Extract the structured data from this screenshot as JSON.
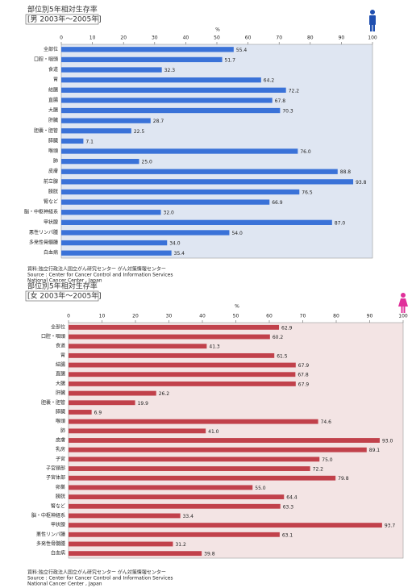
{
  "chart_data": [
    {
      "type": "bar",
      "orientation": "horizontal",
      "title": "部位別5年相対生存率",
      "subtitle": "[男 2003年～2005年]",
      "xlabel": "%",
      "categories": [
        "全部位",
        "口腔・咽頭",
        "食道",
        "胃",
        "結腸",
        "直腸",
        "大腸",
        "肝臓",
        "胆嚢・胆管",
        "膵臓",
        "喉頭",
        "肺",
        "皮膚",
        "前立腺",
        "膀胱",
        "腎など",
        "脳・中枢神経系",
        "甲状腺",
        "悪性リンパ腫",
        "多発性骨髄腫",
        "白血病"
      ],
      "values": [
        55.4,
        51.7,
        32.3,
        64.2,
        72.2,
        67.8,
        70.3,
        28.7,
        22.5,
        7.1,
        76.0,
        25.0,
        88.8,
        93.8,
        76.5,
        66.9,
        32.0,
        87.0,
        54.0,
        34.0,
        35.4
      ],
      "value_labels": [
        "55.4",
        "51.7",
        "32.3",
        "64.2",
        "72.2",
        "67.8",
        "70.3",
        "28.7",
        "22.5",
        "7.1",
        "76.0",
        "25.0",
        "88.8",
        "93.8",
        "76.5",
        "66.9",
        "32.0",
        "87.0",
        "54.0",
        "34.0",
        "35.4"
      ],
      "color": "#3a72d8",
      "background": "#dfe6f2",
      "xlim": [
        0,
        100
      ],
      "xticks": [
        0,
        10,
        20,
        30,
        40,
        50,
        60,
        70,
        80,
        90,
        100
      ],
      "source": [
        "資料:独立行政法人国立がん研究センター がん対策情報センター",
        "Source : Center for Cancer Control and Information Services",
        "National Cancer Center , Japan"
      ]
    },
    {
      "type": "bar",
      "orientation": "horizontal",
      "title": "部位別5年相対生存率",
      "subtitle": "[女 2003年～2005年]",
      "xlabel": "%",
      "categories": [
        "全部位",
        "口腔・咽頭",
        "食道",
        "胃",
        "結腸",
        "直腸",
        "大腸",
        "肝臓",
        "胆嚢・胆管",
        "膵臓",
        "喉頭",
        "肺",
        "皮膚",
        "乳房",
        "子宮",
        "子宮頸部",
        "子宮体部",
        "卵巣",
        "膀胱",
        "腎など",
        "脳・中枢神経系",
        "甲状腺",
        "悪性リンパ腫",
        "多発性骨髄腫",
        "白血病"
      ],
      "values": [
        62.9,
        60.2,
        41.3,
        61.5,
        67.9,
        67.8,
        67.9,
        26.2,
        19.9,
        6.9,
        74.6,
        41.0,
        93.0,
        89.1,
        75.0,
        72.2,
        79.8,
        55.0,
        64.4,
        63.3,
        33.4,
        93.7,
        63.1,
        31.2,
        39.8
      ],
      "value_labels": [
        "62.9",
        "60.2",
        "41.3",
        "61.5",
        "67.9",
        "67.8",
        "67.9",
        "26.2",
        "19.9",
        "6.9",
        "74.6",
        "41.0",
        "93.0",
        "89.1",
        "75.0",
        "72.2",
        "79.8",
        "55.0",
        "64.4",
        "63.3",
        "33.4",
        "93.7",
        "63.1",
        "31.2",
        "39.8"
      ],
      "color": "#c1414b",
      "background": "#f3e4e4",
      "xlim": [
        0,
        100
      ],
      "xticks": [
        0,
        10,
        20,
        30,
        40,
        50,
        60,
        70,
        80,
        90,
        100
      ],
      "source": [
        "資料:独立行政法人国立がん研究センター がん対策情報センター",
        "Source : Center for Cancer Control and Information Services",
        "National Cancer Center , Japan"
      ]
    }
  ]
}
